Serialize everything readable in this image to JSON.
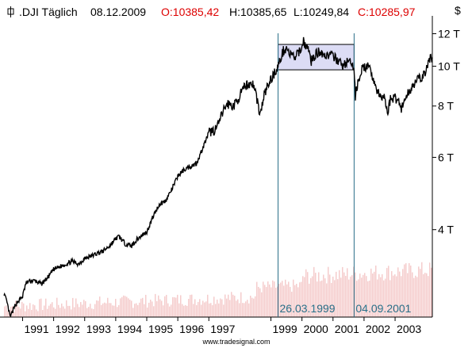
{
  "header": {
    "instrument": ".DJI Täglich",
    "date": "08.12.2009",
    "open": "O:10385,42",
    "high": "H:10385,65",
    "low": "L:10249,84",
    "close": "C:10285,97",
    "currency": "$"
  },
  "colors": {
    "line": "#000000",
    "open_close": "#dd0000",
    "marker": "#2a6f88",
    "box_fill": "#dcdcf5",
    "box_stroke": "#000000",
    "volume": "#f5cccc",
    "grid": "#dddddd"
  },
  "markers": [
    {
      "label": "26.03.1999",
      "year": 1999.23
    },
    {
      "label": "04.09.2001",
      "year": 2001.68
    }
  ],
  "range_box": {
    "x0": 1999.23,
    "x1": 2001.68,
    "y0": 9800,
    "y1": 11300
  },
  "footer": "www.tradesignal.com",
  "chart_data": {
    "type": "line",
    "title": ".DJI Täglich",
    "scale": "log",
    "xlim": [
      1990.4,
      2004.2
    ],
    "ylim": [
      2450,
      12800
    ],
    "y_ticks": [
      {
        "value": 4000,
        "label": "4 T"
      },
      {
        "value": 6000,
        "label": "6 T"
      },
      {
        "value": 8000,
        "label": "8 T"
      },
      {
        "value": 10000,
        "label": "10 T"
      },
      {
        "value": 12000,
        "label": "12 T"
      }
    ],
    "x_ticks": [
      {
        "value": 1991,
        "label": "1991"
      },
      {
        "value": 1992,
        "label": "1992"
      },
      {
        "value": 1993,
        "label": "1993"
      },
      {
        "value": 1994,
        "label": "1994"
      },
      {
        "value": 1995,
        "label": "1995"
      },
      {
        "value": 1996,
        "label": "1996"
      },
      {
        "value": 1997,
        "label": "1997"
      },
      {
        "value": 1999,
        "label": "1999"
      },
      {
        "value": 2000,
        "label": "2000"
      },
      {
        "value": 2001,
        "label": "2001"
      },
      {
        "value": 2002,
        "label": "2002"
      },
      {
        "value": 2003,
        "label": "2003"
      }
    ],
    "series": [
      {
        "x": [
          1990.4,
          1990.5,
          1990.6,
          1990.7,
          1990.8,
          1990.9,
          1991.0,
          1991.1,
          1991.2,
          1991.4,
          1991.6,
          1991.8,
          1992.0,
          1992.2,
          1992.4,
          1992.6,
          1992.8,
          1993.0,
          1993.2,
          1993.4,
          1993.6,
          1993.8,
          1994.0,
          1994.1,
          1994.3,
          1994.5,
          1994.7,
          1994.9,
          1995.0,
          1995.2,
          1995.4,
          1995.6,
          1995.8,
          1996.0,
          1996.2,
          1996.4,
          1996.6,
          1996.8,
          1997.0,
          1997.2,
          1997.3,
          1997.5,
          1997.6,
          1997.8,
          1997.9,
          1998.0,
          1998.2,
          1998.4,
          1998.5,
          1998.65,
          1998.8,
          1999.0,
          1999.23,
          1999.4,
          1999.5,
          1999.6,
          1999.8,
          1999.95,
          2000.05,
          2000.2,
          2000.3,
          2000.45,
          2000.6,
          2000.75,
          2000.9,
          2001.0,
          2001.15,
          2001.3,
          2001.5,
          2001.68,
          2001.72,
          2001.8,
          2001.95,
          2002.1,
          2002.25,
          2002.4,
          2002.55,
          2002.65,
          2002.75,
          2002.85,
          2002.95,
          2003.1,
          2003.2,
          2003.35,
          2003.5,
          2003.65,
          2003.8,
          2003.9,
          2004.0,
          2004.1,
          2004.2
        ],
        "values": [
          2800,
          2650,
          2450,
          2550,
          2650,
          2700,
          2750,
          2950,
          3000,
          3000,
          2950,
          3050,
          3200,
          3250,
          3300,
          3350,
          3300,
          3400,
          3450,
          3500,
          3550,
          3650,
          3800,
          3850,
          3700,
          3650,
          3800,
          3900,
          3950,
          4300,
          4600,
          4700,
          5000,
          5400,
          5600,
          5700,
          5800,
          6300,
          6900,
          7000,
          7200,
          7900,
          8100,
          8000,
          8200,
          8500,
          9000,
          9100,
          8700,
          7600,
          8600,
          9300,
          10000,
          10900,
          11100,
          10700,
          10500,
          11000,
          11500,
          11000,
          10300,
          10700,
          10900,
          10600,
          10700,
          10500,
          10400,
          10000,
          10300,
          9900,
          8400,
          9200,
          9900,
          10000,
          9600,
          8800,
          8300,
          8500,
          7700,
          8300,
          8400,
          8300,
          7900,
          8400,
          8800,
          9200,
          9300,
          9500,
          9700,
          10400,
          10500
        ]
      }
    ]
  }
}
